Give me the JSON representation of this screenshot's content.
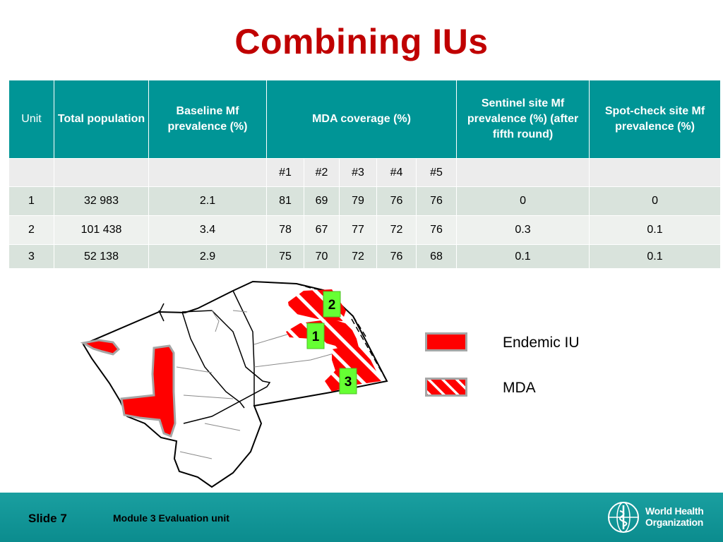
{
  "title": "Combining IUs",
  "table": {
    "headers": {
      "unit": "Unit",
      "population": "Total population",
      "baseline": "Baseline Mf prevalence (%)",
      "mda": "MDA coverage (%)",
      "sentinel": "Sentinel site Mf prevalence (%) (after fifth round)",
      "spot": "Spot-check site Mf prevalence (%)"
    },
    "rounds": [
      "#1",
      "#2",
      "#3",
      "#4",
      "#5"
    ],
    "rows": [
      {
        "unit": "1",
        "population": "32 983",
        "baseline": "2.1",
        "mda": [
          "81",
          "69",
          "79",
          "76",
          "76"
        ],
        "sentinel": "0",
        "spot": "0"
      },
      {
        "unit": "2",
        "population": "101 438",
        "baseline": "3.4",
        "mda": [
          "78",
          "67",
          "77",
          "72",
          "76"
        ],
        "sentinel": "0.3",
        "spot": "0.1"
      },
      {
        "unit": "3",
        "population": "52 138",
        "baseline": "2.9",
        "mda": [
          "75",
          "70",
          "72",
          "76",
          "68"
        ],
        "sentinel": "0.1",
        "spot": "0.1"
      }
    ]
  },
  "map": {
    "unit_labels": [
      "2",
      "1",
      "3"
    ],
    "colors": {
      "endemic": "#ff0000",
      "label_bg": "#66ff33",
      "outline": "#a6a6a6"
    }
  },
  "legend": {
    "endemic": "Endemic IU",
    "mda": "MDA"
  },
  "footer": {
    "slide": "Slide 7",
    "module": "Module 3 Evaluation unit",
    "org_line1": "World Health",
    "org_line2": "Organization",
    "background": "#0b8c8e"
  }
}
